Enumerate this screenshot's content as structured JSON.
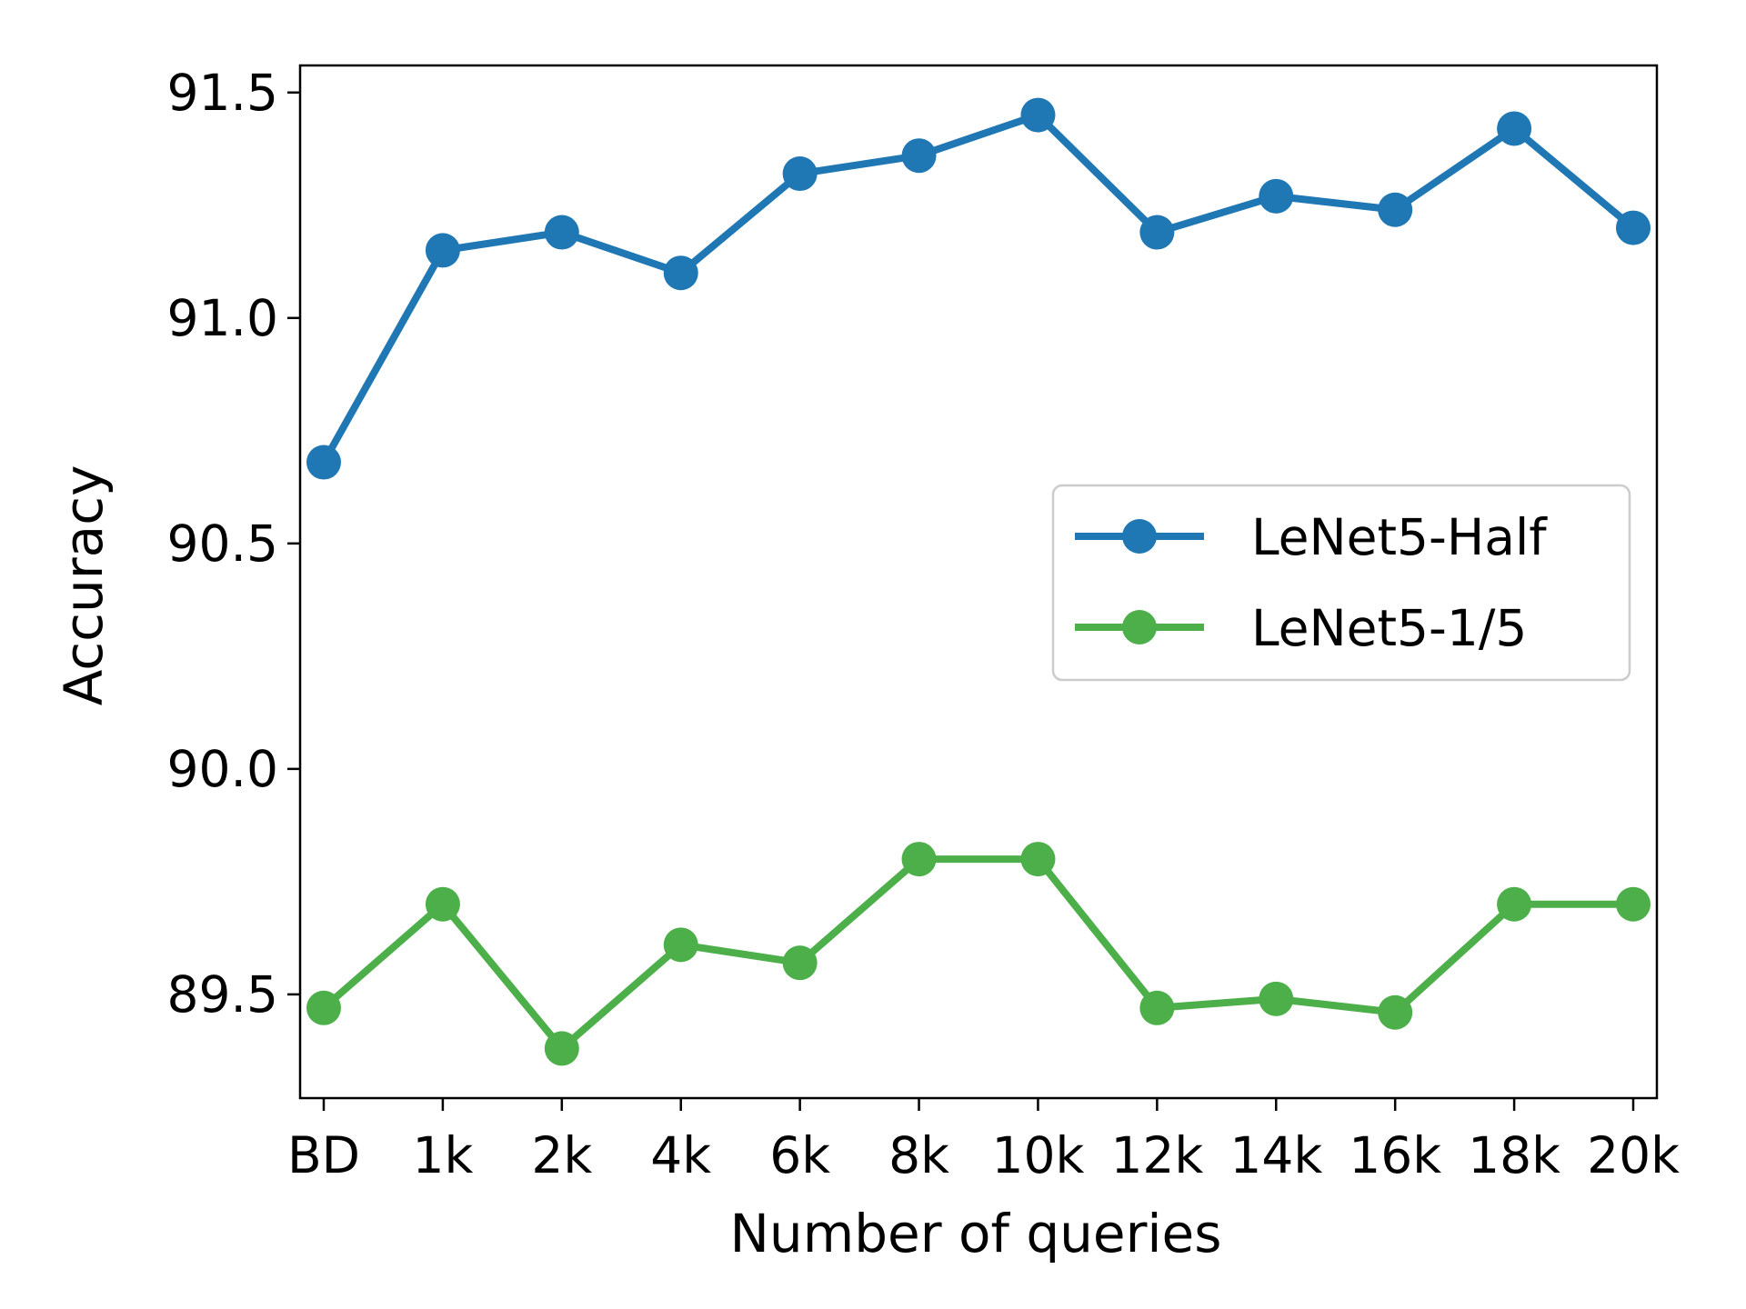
{
  "chart_data": {
    "type": "line",
    "title": "",
    "xlabel": "Number of queries",
    "ylabel": "Accuracy",
    "categories": [
      "BD",
      "1k",
      "2k",
      "4k",
      "6k",
      "8k",
      "10k",
      "12k",
      "14k",
      "16k",
      "18k",
      "20k"
    ],
    "ylim": [
      89.27,
      91.56
    ],
    "yticks": [
      "89.5",
      "90.0",
      "90.5",
      "91.0",
      "91.5"
    ],
    "grid": false,
    "legend_position": "center-right",
    "series": [
      {
        "name": "LeNet5-Half",
        "color": "#1f77b4",
        "marker": "circle",
        "values": [
          90.68,
          91.15,
          91.19,
          91.1,
          91.32,
          91.36,
          91.45,
          91.19,
          91.27,
          91.24,
          91.42,
          91.2
        ]
      },
      {
        "name": "LeNet5-1/5",
        "color": "#4daf4a",
        "marker": "circle",
        "values": [
          89.47,
          89.7,
          89.38,
          89.61,
          89.57,
          89.8,
          89.8,
          89.47,
          89.49,
          89.46,
          89.7,
          89.7
        ]
      }
    ]
  }
}
